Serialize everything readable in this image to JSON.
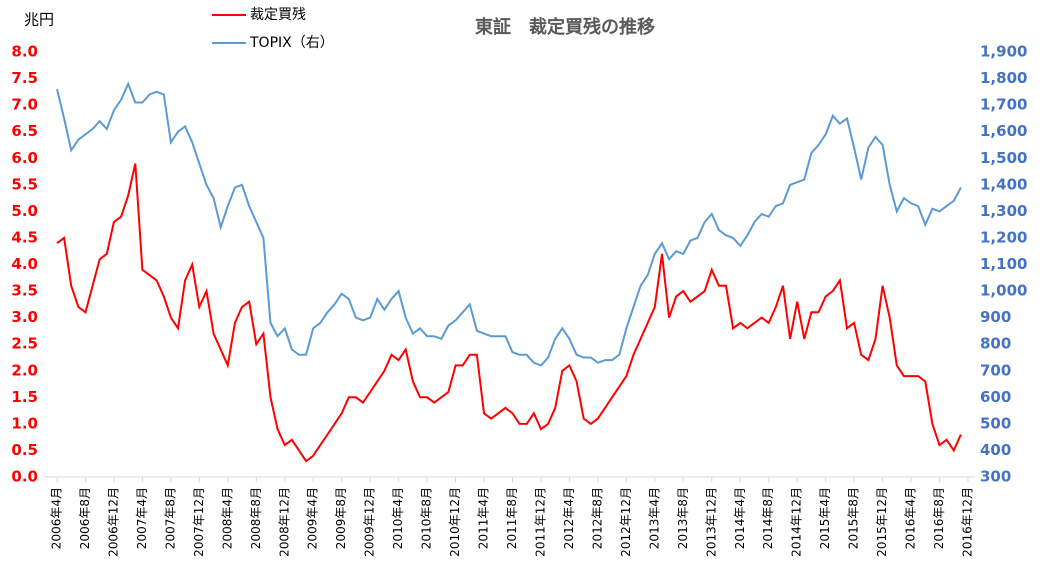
{
  "chart_data": {
    "type": "line",
    "title": "東証　裁定買残の推移",
    "y_label": "兆円",
    "categories": [
      "2006年4月",
      null,
      null,
      null,
      "2006年8月",
      null,
      null,
      null,
      "2006年12月",
      null,
      null,
      null,
      "2007年4月",
      null,
      null,
      null,
      "2007年8月",
      null,
      null,
      null,
      "2007年12月",
      null,
      null,
      null,
      "2008年4月",
      null,
      null,
      null,
      "2008年8月",
      null,
      null,
      null,
      "2008年12月",
      null,
      null,
      null,
      "2009年4月",
      null,
      null,
      null,
      "2009年8月",
      null,
      null,
      null,
      "2009年12月",
      null,
      null,
      null,
      "2010年4月",
      null,
      null,
      null,
      "2010年8月",
      null,
      null,
      null,
      "2010年12月",
      null,
      null,
      null,
      "2011年4月",
      null,
      null,
      null,
      "2011年8月",
      null,
      null,
      null,
      "2011年12月",
      null,
      null,
      null,
      "2012年4月",
      null,
      null,
      null,
      "2012年8月",
      null,
      null,
      null,
      "2012年12月",
      null,
      null,
      null,
      "2013年4月",
      null,
      null,
      null,
      "2013年8月",
      null,
      null,
      null,
      "2013年12月",
      null,
      null,
      null,
      "2014年4月",
      null,
      null,
      null,
      "2014年8月",
      null,
      null,
      null,
      "2014年12月",
      null,
      null,
      null,
      "2015年4月",
      null,
      null,
      null,
      "2015年8月",
      null,
      null,
      null,
      "2015年12月",
      null,
      null,
      null,
      "2016年4月",
      null,
      null,
      null,
      "2016年8月",
      null,
      null,
      null,
      "2016年12月"
    ],
    "series": [
      {
        "name": "裁定買残",
        "color": "#ff0000",
        "values": [
          4.4,
          4.5,
          3.6,
          3.2,
          3.1,
          3.6,
          4.1,
          4.2,
          4.8,
          4.9,
          5.3,
          5.9,
          3.9,
          3.8,
          3.7,
          3.4,
          3.0,
          2.8,
          3.7,
          4.0,
          3.2,
          3.5,
          2.7,
          2.4,
          2.1,
          2.9,
          3.2,
          3.3,
          2.5,
          2.7,
          1.5,
          0.9,
          0.6,
          0.7,
          0.5,
          0.3,
          0.4,
          0.6,
          0.8,
          1.0,
          1.2,
          1.5,
          1.5,
          1.4,
          1.6,
          1.8,
          2.0,
          2.3,
          2.2,
          2.4,
          1.8,
          1.5,
          1.5,
          1.4,
          1.5,
          1.6,
          2.1,
          2.1,
          2.3,
          2.3,
          1.2,
          1.1,
          1.2,
          1.3,
          1.2,
          1.0,
          1.0,
          1.2,
          0.9,
          1.0,
          1.3,
          2.0,
          2.1,
          1.8,
          1.1,
          1.0,
          1.1,
          1.3,
          1.5,
          1.7,
          1.9,
          2.3,
          2.6,
          2.9,
          3.2,
          4.2,
          3.0,
          3.4,
          3.5,
          3.3,
          3.4,
          3.5,
          3.9,
          3.6,
          3.6,
          2.8,
          2.9,
          2.8,
          2.9,
          3.0,
          2.9,
          3.2,
          3.6,
          2.6,
          3.3,
          2.6,
          3.1,
          3.1,
          3.4,
          3.5,
          3.7,
          2.8,
          2.9,
          2.3,
          2.2,
          2.6,
          3.6,
          3.0,
          2.1,
          1.9,
          1.9,
          1.9,
          1.8,
          1.0,
          0.6,
          0.7,
          0.5,
          0.8,
          null
        ]
      },
      {
        "name": "TOPIX（右）",
        "color": "#5b9bd5",
        "axis": "y2",
        "values": [
          1760,
          1650,
          1530,
          1570,
          1590,
          1610,
          1640,
          1610,
          1680,
          1720,
          1780,
          1710,
          1710,
          1740,
          1750,
          1740,
          1560,
          1600,
          1620,
          1560,
          1480,
          1400,
          1350,
          1240,
          1320,
          1390,
          1400,
          1320,
          1260,
          1200,
          880,
          830,
          860,
          780,
          760,
          760,
          860,
          880,
          920,
          950,
          990,
          970,
          900,
          890,
          900,
          970,
          930,
          970,
          1000,
          900,
          840,
          860,
          830,
          830,
          820,
          870,
          890,
          920,
          950,
          850,
          840,
          830,
          830,
          830,
          770,
          760,
          760,
          730,
          720,
          750,
          820,
          860,
          820,
          760,
          750,
          750,
          730,
          740,
          740,
          760,
          860,
          940,
          1020,
          1060,
          1140,
          1180,
          1120,
          1150,
          1140,
          1190,
          1200,
          1260,
          1290,
          1230,
          1210,
          1200,
          1170,
          1210,
          1260,
          1290,
          1280,
          1320,
          1330,
          1400,
          1410,
          1420,
          1520,
          1550,
          1590,
          1660,
          1630,
          1650,
          1540,
          1420,
          1540,
          1580,
          1550,
          1400,
          1300,
          1350,
          1330,
          1320,
          1250,
          1310,
          1300,
          1320,
          1340,
          1390,
          null
        ]
      }
    ],
    "ylim": [
      0,
      8
    ],
    "yticks": [
      {
        "value": 0,
        "label": "0.0"
      },
      0.5,
      {
        "value": 1,
        "label": "1.0"
      },
      1.5,
      {
        "value": 2,
        "label": "2.0"
      },
      2.5,
      {
        "value": 3,
        "label": "3.0"
      },
      3.5,
      {
        "value": 4,
        "label": "4.0"
      },
      4.5,
      {
        "value": 5,
        "label": "5.0"
      },
      5.5,
      {
        "value": 6,
        "label": "6.0"
      },
      6.5,
      {
        "value": 7,
        "label": "7.0"
      },
      7.5,
      {
        "value": 8,
        "label": "8.0"
      }
    ],
    "y2lim": [
      300,
      1900
    ],
    "y2ticks": [
      300,
      400,
      500,
      600,
      700,
      800,
      900,
      {
        "value": 1000,
        "label": "1,000"
      },
      {
        "value": 1100,
        "label": "1,100"
      },
      {
        "value": 1200,
        "label": "1,200"
      },
      {
        "value": 1300,
        "label": "1,300"
      },
      {
        "value": 1400,
        "label": "1,400"
      },
      {
        "value": 1500,
        "label": "1,500"
      },
      {
        "value": 1600,
        "label": "1,600"
      },
      {
        "value": 1700,
        "label": "1,700"
      },
      {
        "value": 1800,
        "label": "1,800"
      },
      {
        "value": 1900,
        "label": "1,900"
      }
    ],
    "y_tick_color": "#ff0000",
    "y2_tick_color": "#4472c4"
  }
}
